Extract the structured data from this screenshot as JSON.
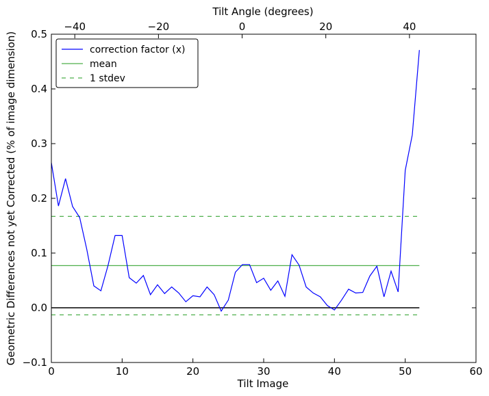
{
  "chart_data": {
    "type": "line",
    "xlabel": "Tilt Image",
    "ylabel": "Geometric Differences not yet Corrected (% of image dimension)",
    "top_xlabel": "Tilt Angle (degrees)",
    "xlim": [
      0,
      60
    ],
    "ylim": [
      -0.1,
      0.5
    ],
    "top_xlim": [
      -45.6,
      55.9
    ],
    "x_ticks": [
      0,
      10,
      20,
      30,
      40,
      50,
      60
    ],
    "x_tick_labels": [
      "0",
      "10",
      "20",
      "30",
      "40",
      "50",
      "60"
    ],
    "y_ticks": [
      -0.1,
      0.0,
      0.1,
      0.2,
      0.3,
      0.4,
      0.5
    ],
    "y_tick_labels": [
      "−0.1",
      "0.0",
      "0.1",
      "0.2",
      "0.3",
      "0.4",
      "0.5"
    ],
    "top_ticks": [
      -40,
      -20,
      0,
      20,
      40
    ],
    "top_tick_labels": [
      "−40",
      "−20",
      "0",
      "20",
      "40"
    ],
    "grid": false,
    "legend_position": "top-left",
    "series": [
      {
        "name": "correction factor (x)",
        "style": "solid",
        "color": "#0000ff",
        "x": [
          0,
          1,
          2,
          3,
          4,
          5,
          6,
          7,
          8,
          9,
          10,
          11,
          12,
          13,
          14,
          15,
          16,
          17,
          18,
          19,
          20,
          21,
          22,
          23,
          24,
          25,
          26,
          27,
          28,
          29,
          30,
          31,
          32,
          33,
          34,
          35,
          36,
          37,
          38,
          39,
          40,
          41,
          42,
          43,
          44,
          45,
          46,
          47,
          48,
          49,
          50,
          51,
          52
        ],
        "values": [
          0.265,
          0.186,
          0.236,
          0.185,
          0.165,
          0.107,
          0.04,
          0.031,
          0.077,
          0.132,
          0.132,
          0.055,
          0.045,
          0.059,
          0.024,
          0.042,
          0.026,
          0.038,
          0.027,
          0.011,
          0.022,
          0.02,
          0.038,
          0.024,
          -0.006,
          0.014,
          0.065,
          0.079,
          0.079,
          0.046,
          0.054,
          0.032,
          0.049,
          0.021,
          0.097,
          0.078,
          0.038,
          0.027,
          0.02,
          0.004,
          -0.004,
          0.014,
          0.034,
          0.027,
          0.028,
          0.058,
          0.076,
          0.02,
          0.067,
          0.029,
          0.251,
          0.316,
          0.471
        ]
      },
      {
        "name": "mean",
        "style": "solid",
        "color": "#4daf4a",
        "x": [
          0,
          52
        ],
        "values": [
          0.077,
          0.077
        ]
      },
      {
        "name": "1 stdev",
        "style": "dashed",
        "color": "#4daf4a",
        "x": [
          0,
          52
        ],
        "values": [
          0.167,
          0.167
        ]
      },
      {
        "style": "dashed",
        "color": "#4daf4a",
        "x": [
          0,
          52
        ],
        "values": [
          -0.013,
          -0.013
        ]
      },
      {
        "style": "solid",
        "color": "#000000",
        "x": [
          0,
          52
        ],
        "values": [
          0.0,
          0.0
        ]
      }
    ]
  }
}
